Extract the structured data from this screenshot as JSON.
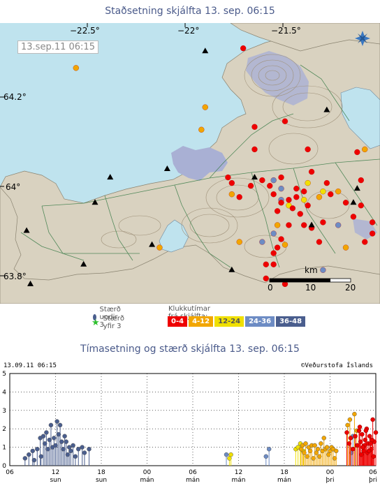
{
  "map": {
    "title": "Staðsetning skjálfta   13. sep. 06:15",
    "timestamp_label": "13.sep.11  06:15",
    "lon_labels": [
      "−22.5°",
      "−22°",
      "−21.5°"
    ],
    "lat_labels": [
      "64.2°",
      "64°",
      "63.8°"
    ],
    "scale_unit": "km",
    "scale_ticks": [
      "0",
      "10",
      "20"
    ],
    "colors": {
      "sea": "#bfe3ee",
      "land": "#d9d2c0",
      "ice": "#a9b0d4"
    }
  },
  "legend": {
    "under3": "Stærð undir 3",
    "over3": "Stærð yfir 3",
    "hours_title": "Klukkutímar frá skjálfta:",
    "bands": [
      {
        "label": "0-4",
        "color": "#ee0000",
        "text": "#ffffff"
      },
      {
        "label": "4-12",
        "color": "#f2a600",
        "text": "#ffffff"
      },
      {
        "label": "12-24",
        "color": "#f0e000",
        "text": "#555555"
      },
      {
        "label": "24-36",
        "color": "#6d8cc4",
        "text": "#ffffff"
      },
      {
        "label": "36-48",
        "color": "#4a5e8e",
        "text": "#ffffff"
      }
    ]
  },
  "chart": {
    "title": "Tímasetning og stærð skjálfta   13. sep. 06:15",
    "header_left": "13.09.11 06:15",
    "header_right": "©Veðurstofa Íslands",
    "y_ticks": [
      "0",
      "1",
      "2",
      "3",
      "4",
      "5"
    ],
    "x_ticks": [
      {
        "time": "06",
        "day": ""
      },
      {
        "time": "12",
        "day": "sun"
      },
      {
        "time": "18",
        "day": "sun"
      },
      {
        "time": "00",
        "day": "mán"
      },
      {
        "time": "06",
        "day": "mán"
      },
      {
        "time": "12",
        "day": "mán"
      },
      {
        "time": "18",
        "day": "mán"
      },
      {
        "time": "00",
        "day": "þri"
      },
      {
        "time": "06",
        "day": "þri"
      }
    ]
  },
  "chart_data": {
    "type": "scatter",
    "title": "Tímasetning og stærð skjálfta   13. sep. 06:15",
    "xlabel": "",
    "ylabel": "",
    "ylim": [
      0,
      5
    ],
    "x_hours_range": [
      0,
      48
    ],
    "series": [
      {
        "color": "#4a5e8e",
        "x": [
          2.0,
          2.5,
          3.0,
          3.2,
          3.6,
          4.0,
          4.1,
          4.4,
          4.6,
          4.8,
          5.0,
          5.2,
          5.4,
          5.6,
          5.8,
          6.0,
          6.2,
          6.4,
          6.6,
          6.8,
          7.0,
          7.2,
          7.4,
          7.6,
          7.8,
          8.0,
          8.3,
          8.6,
          9.0,
          9.5,
          9.8,
          10.4
        ],
        "y": [
          0.4,
          0.6,
          0.8,
          0.3,
          0.9,
          1.5,
          0.5,
          1.6,
          1.2,
          1.8,
          0.9,
          1.4,
          2.2,
          1.0,
          1.5,
          1.1,
          2.4,
          1.7,
          2.2,
          1.3,
          0.9,
          1.6,
          1.3,
          0.6,
          1.0,
          0.8,
          1.1,
          0.5,
          0.9,
          1.0,
          0.7,
          0.9
        ]
      },
      {
        "color": "#6d8cc4",
        "x": [
          28.4,
          33.6,
          34.0,
          44.8,
          45.0,
          45.5
        ],
        "y": [
          0.6,
          0.5,
          0.9,
          0.7,
          1.6,
          1.1
        ]
      },
      {
        "color": "#f0e000",
        "x": [
          28.8,
          29.0,
          37.5,
          37.8,
          38.1,
          38.5
        ],
        "y": [
          0.4,
          0.6,
          0.9,
          1.0,
          1.2,
          0.8
        ]
      },
      {
        "color": "#f2a600",
        "x": [
          38.2,
          38.4,
          38.6,
          38.8,
          39.0,
          39.2,
          39.4,
          39.6,
          39.8,
          40.0,
          40.2,
          40.4,
          40.6,
          40.8,
          41.0,
          41.2,
          41.4,
          41.6,
          41.8,
          42.0,
          42.2,
          42.4,
          42.6,
          42.8,
          44.3,
          44.6,
          45.2,
          45.5
        ],
        "y": [
          0.9,
          1.1,
          0.7,
          1.2,
          0.5,
          1.0,
          0.8,
          1.1,
          0.4,
          1.1,
          0.7,
          0.9,
          0.5,
          1.2,
          0.8,
          1.5,
          0.9,
          1.0,
          0.6,
          0.8,
          1.0,
          0.9,
          0.4,
          0.8,
          2.2,
          2.5,
          2.8,
          1.9
        ]
      },
      {
        "color": "#ee0000",
        "x": [
          44.2,
          44.5,
          44.7,
          45.0,
          45.3,
          45.6,
          45.8,
          46.0,
          46.2,
          46.4,
          46.6,
          46.8,
          47.0,
          47.2,
          47.4,
          47.6,
          47.8,
          48.0,
          46.1,
          46.5,
          46.9,
          47.3,
          47.7,
          45.9,
          46.3,
          46.7,
          47.1,
          47.5
        ],
        "y": [
          1.8,
          1.2,
          1.5,
          0.9,
          1.6,
          1.1,
          1.9,
          1.3,
          1.7,
          0.8,
          1.4,
          2.0,
          1.2,
          1.6,
          0.9,
          2.5,
          1.3,
          1.8,
          0.6,
          1.1,
          0.7,
          1.2,
          0.5,
          2.1,
          1.0,
          1.9,
          0.8,
          1.4
        ]
      }
    ]
  },
  "quakes": {
    "red": [
      [
        0.64,
        0.09
      ],
      [
        0.6,
        0.55
      ],
      [
        0.61,
        0.57
      ],
      [
        0.66,
        0.58
      ],
      [
        0.63,
        0.62
      ],
      [
        0.69,
        0.56
      ],
      [
        0.71,
        0.58
      ],
      [
        0.72,
        0.61
      ],
      [
        0.74,
        0.64
      ],
      [
        0.76,
        0.63
      ],
      [
        0.78,
        0.62
      ],
      [
        0.8,
        0.6
      ],
      [
        0.81,
        0.65
      ],
      [
        0.79,
        0.68
      ],
      [
        0.8,
        0.72
      ],
      [
        0.82,
        0.73
      ],
      [
        0.76,
        0.72
      ],
      [
        0.74,
        0.77
      ],
      [
        0.73,
        0.8
      ],
      [
        0.72,
        0.82
      ],
      [
        0.72,
        0.86
      ],
      [
        0.7,
        0.91
      ],
      [
        0.67,
        0.37
      ],
      [
        0.75,
        0.35
      ],
      [
        0.81,
        0.45
      ],
      [
        0.67,
        0.45
      ],
      [
        0.82,
        0.53
      ],
      [
        0.95,
        0.65
      ],
      [
        0.96,
        0.78
      ],
      [
        0.91,
        0.64
      ],
      [
        0.93,
        0.69
      ],
      [
        0.87,
        0.61
      ],
      [
        0.95,
        0.56
      ],
      [
        0.98,
        0.75
      ],
      [
        0.75,
        0.93
      ],
      [
        0.85,
        0.71
      ],
      [
        0.73,
        0.67
      ],
      [
        0.7,
        0.86
      ],
      [
        0.74,
        0.55
      ],
      [
        0.86,
        0.57
      ],
      [
        0.94,
        0.46
      ],
      [
        0.98,
        0.71
      ],
      [
        0.84,
        0.78
      ],
      [
        0.78,
        0.59
      ],
      [
        0.77,
        0.66
      ]
    ],
    "orange": [
      [
        0.2,
        0.16
      ],
      [
        0.53,
        0.38
      ],
      [
        0.61,
        0.61
      ],
      [
        0.63,
        0.78
      ],
      [
        0.73,
        0.72
      ],
      [
        0.84,
        0.62
      ],
      [
        0.89,
        0.6
      ],
      [
        0.96,
        0.45
      ],
      [
        0.91,
        0.8
      ],
      [
        0.42,
        0.8
      ],
      [
        0.75,
        0.79
      ],
      [
        0.54,
        0.3
      ]
    ],
    "yellow": [
      [
        0.81,
        0.57
      ],
      [
        0.85,
        0.6
      ],
      [
        0.8,
        0.63
      ],
      [
        0.76,
        0.65
      ]
    ],
    "blue": [
      [
        0.74,
        0.59
      ],
      [
        0.72,
        0.56
      ],
      [
        0.74,
        0.63
      ],
      [
        0.89,
        0.72
      ],
      [
        0.85,
        0.88
      ],
      [
        0.72,
        0.75
      ],
      [
        0.69,
        0.78
      ]
    ],
    "triangles": [
      [
        0.54,
        0.1
      ],
      [
        0.29,
        0.55
      ],
      [
        0.44,
        0.52
      ],
      [
        0.67,
        0.55
      ],
      [
        0.86,
        0.31
      ],
      [
        0.07,
        0.74
      ],
      [
        0.25,
        0.64
      ],
      [
        0.22,
        0.86
      ],
      [
        0.61,
        0.88
      ],
      [
        0.82,
        0.72
      ],
      [
        0.93,
        0.64
      ],
      [
        0.08,
        0.93
      ],
      [
        0.4,
        0.79
      ],
      [
        0.94,
        0.59
      ]
    ],
    "radius": 4
  }
}
